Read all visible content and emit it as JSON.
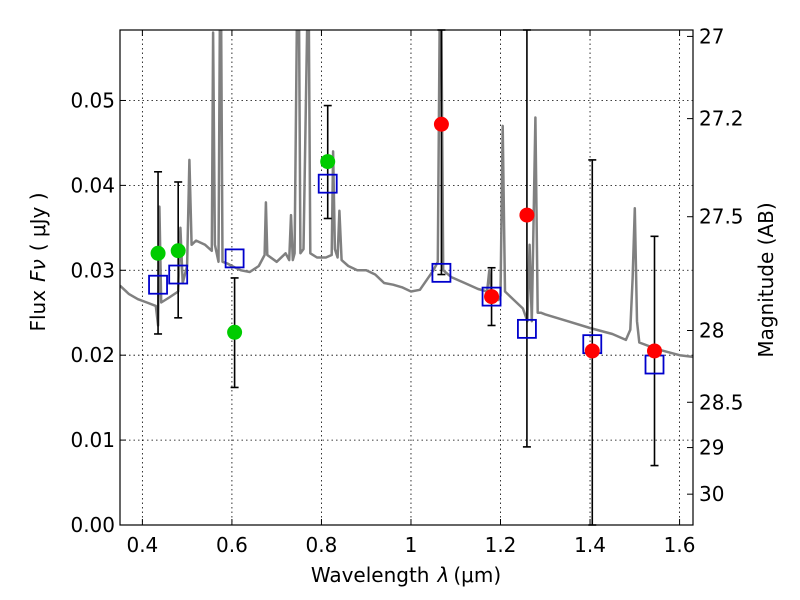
{
  "chart_data": {
    "type": "scatter",
    "xlabel": "Wavelength",
    "xlabel_symbol": "λ",
    "xlabel_unit": "(μm)",
    "ylabel": "Flux",
    "ylabel_symbol": "Fν",
    "ylabel_unit": "( μJy )",
    "ylabel_right": "Magnitude (AB)",
    "xlim": [
      0.35,
      1.63
    ],
    "ylim": [
      0.0,
      0.0583
    ],
    "grid": true,
    "x_ticks": [
      {
        "value": 0.4,
        "label": "0.4"
      },
      {
        "value": 0.6,
        "label": "0.6"
      },
      {
        "value": 0.8,
        "label": "0.8"
      },
      {
        "value": 1.0,
        "label": "1"
      },
      {
        "value": 1.2,
        "label": "1.2"
      },
      {
        "value": 1.4,
        "label": "1.4"
      },
      {
        "value": 1.6,
        "label": "1.6"
      }
    ],
    "y_ticks": [
      {
        "value": 0.0,
        "label": "0.00"
      },
      {
        "value": 0.01,
        "label": "0.01"
      },
      {
        "value": 0.02,
        "label": "0.02"
      },
      {
        "value": 0.03,
        "label": "0.03"
      },
      {
        "value": 0.04,
        "label": "0.04"
      },
      {
        "value": 0.05,
        "label": "0.05"
      }
    ],
    "right_ticks": [
      {
        "mag": 27,
        "label": "27"
      },
      {
        "mag": 27.2,
        "label": "27.2"
      },
      {
        "mag": 27.5,
        "label": "27.5"
      },
      {
        "mag": 28,
        "label": "28"
      },
      {
        "mag": 28.5,
        "label": "28.5"
      },
      {
        "mag": 29,
        "label": "29"
      },
      {
        "mag": 30,
        "label": "30"
      }
    ],
    "model_spectrum": {
      "color": "#808080",
      "points": [
        [
          0.35,
          0.0282
        ],
        [
          0.37,
          0.0272
        ],
        [
          0.39,
          0.0266
        ],
        [
          0.41,
          0.0262
        ],
        [
          0.43,
          0.0258
        ],
        [
          0.435,
          0.0235
        ],
        [
          0.438,
          0.0375
        ],
        [
          0.442,
          0.0262
        ],
        [
          0.46,
          0.0268
        ],
        [
          0.48,
          0.0275
        ],
        [
          0.485,
          0.035
        ],
        [
          0.49,
          0.0285
        ],
        [
          0.5,
          0.0305
        ],
        [
          0.505,
          0.043
        ],
        [
          0.51,
          0.033
        ],
        [
          0.52,
          0.0335
        ],
        [
          0.54,
          0.033
        ],
        [
          0.555,
          0.0323
        ],
        [
          0.558,
          0.058
        ],
        [
          0.562,
          0.033
        ],
        [
          0.57,
          0.031
        ],
        [
          0.573,
          0.0583
        ],
        [
          0.576,
          0.0583
        ],
        [
          0.579,
          0.031
        ],
        [
          0.59,
          0.0308
        ],
        [
          0.6,
          0.0305
        ],
        [
          0.62,
          0.03
        ],
        [
          0.64,
          0.0298
        ],
        [
          0.66,
          0.0305
        ],
        [
          0.673,
          0.0318
        ],
        [
          0.676,
          0.038
        ],
        [
          0.679,
          0.0318
        ],
        [
          0.7,
          0.031
        ],
        [
          0.72,
          0.032
        ],
        [
          0.728,
          0.0312
        ],
        [
          0.732,
          0.0365
        ],
        [
          0.736,
          0.0312
        ],
        [
          0.74,
          0.032
        ],
        [
          0.745,
          0.0583
        ],
        [
          0.75,
          0.0583
        ],
        [
          0.753,
          0.032
        ],
        [
          0.76,
          0.0325
        ],
        [
          0.768,
          0.0583
        ],
        [
          0.772,
          0.0583
        ],
        [
          0.775,
          0.032
        ],
        [
          0.79,
          0.0315
        ],
        [
          0.81,
          0.0315
        ],
        [
          0.823,
          0.0318
        ],
        [
          0.826,
          0.044
        ],
        [
          0.83,
          0.0325
        ],
        [
          0.836,
          0.0315
        ],
        [
          0.84,
          0.037
        ],
        [
          0.845,
          0.0312
        ],
        [
          0.86,
          0.0305
        ],
        [
          0.88,
          0.03
        ],
        [
          0.9,
          0.03
        ],
        [
          0.92,
          0.0295
        ],
        [
          0.94,
          0.0285
        ],
        [
          0.96,
          0.0283
        ],
        [
          0.98,
          0.028
        ],
        [
          1.0,
          0.0275
        ],
        [
          1.02,
          0.0277
        ],
        [
          1.05,
          0.03
        ],
        [
          1.06,
          0.031
        ],
        [
          1.064,
          0.0583
        ],
        [
          1.068,
          0.0583
        ],
        [
          1.072,
          0.03
        ],
        [
          1.09,
          0.0292
        ],
        [
          1.12,
          0.0285
        ],
        [
          1.15,
          0.0278
        ],
        [
          1.17,
          0.0275
        ],
        [
          1.175,
          0.03
        ],
        [
          1.18,
          0.027
        ],
        [
          1.195,
          0.0265
        ],
        [
          1.2,
          0.027
        ],
        [
          1.205,
          0.047
        ],
        [
          1.21,
          0.0275
        ],
        [
          1.23,
          0.0265
        ],
        [
          1.25,
          0.0255
        ],
        [
          1.26,
          0.024
        ],
        [
          1.265,
          0.033
        ],
        [
          1.27,
          0.024
        ],
        [
          1.278,
          0.048
        ],
        [
          1.283,
          0.025
        ],
        [
          1.29,
          0.025
        ],
        [
          1.3,
          0.0248
        ],
        [
          1.35,
          0.024
        ],
        [
          1.4,
          0.0232
        ],
        [
          1.45,
          0.0225
        ],
        [
          1.48,
          0.0218
        ],
        [
          1.49,
          0.023
        ],
        [
          1.495,
          0.029
        ],
        [
          1.5,
          0.0373
        ],
        [
          1.505,
          0.024
        ],
        [
          1.51,
          0.0215
        ],
        [
          1.55,
          0.0207
        ],
        [
          1.6,
          0.02
        ],
        [
          1.63,
          0.0198
        ]
      ]
    },
    "series": [
      {
        "name": "",
        "marker": "open-square",
        "color": "#0000cc",
        "points": [
          {
            "x": 0.435,
            "y": 0.0283
          },
          {
            "x": 0.48,
            "y": 0.0295
          },
          {
            "x": 0.606,
            "y": 0.0314
          },
          {
            "x": 0.814,
            "y": 0.0402
          },
          {
            "x": 1.068,
            "y": 0.0297
          },
          {
            "x": 1.18,
            "y": 0.0269
          },
          {
            "x": 1.259,
            "y": 0.0231
          },
          {
            "x": 1.405,
            "y": 0.0213
          },
          {
            "x": 1.544,
            "y": 0.0189
          }
        ]
      },
      {
        "name": "",
        "marker": "filled-circle",
        "color": "#00cc00",
        "points": [
          {
            "x": 0.435,
            "y": 0.032,
            "err_low": 0.0225,
            "err_high": 0.0416
          },
          {
            "x": 0.48,
            "y": 0.0323,
            "err_low": 0.0244,
            "err_high": 0.0404
          },
          {
            "x": 0.606,
            "y": 0.0227,
            "err_low": 0.0162,
            "err_high": 0.0291
          },
          {
            "x": 0.814,
            "y": 0.0428,
            "err_low": 0.0361,
            "err_high": 0.0494
          }
        ]
      },
      {
        "name": "",
        "marker": "filled-circle",
        "color": "#ff0000",
        "points": [
          {
            "x": 1.068,
            "y": 0.0472,
            "err_low": 0.0295,
            "err_high": 0.0583
          },
          {
            "x": 1.18,
            "y": 0.0269,
            "err_low": 0.0235,
            "err_high": 0.0303
          },
          {
            "x": 1.259,
            "y": 0.0365,
            "err_low": 0.0092,
            "err_high": 0.0583
          },
          {
            "x": 1.405,
            "y": 0.0205,
            "err_low": 0.0,
            "err_high": 0.043
          },
          {
            "x": 1.544,
            "y": 0.0205,
            "err_low": 0.007,
            "err_high": 0.034
          }
        ]
      }
    ]
  }
}
